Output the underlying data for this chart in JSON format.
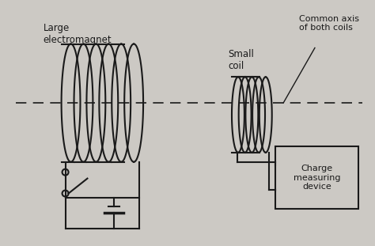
{
  "bg_color": "#ccc9c4",
  "line_color": "#1a1a1a",
  "text_color": "#1a1a1a",
  "label_large_coil": "Large\nelectromagnet",
  "label_small_coil": "Small\ncoil",
  "label_axis": "Common axis\nof both coils",
  "label_device": "Charge\nmeasuring\ndevice",
  "figsize": [
    4.74,
    3.11
  ],
  "dpi": 100
}
